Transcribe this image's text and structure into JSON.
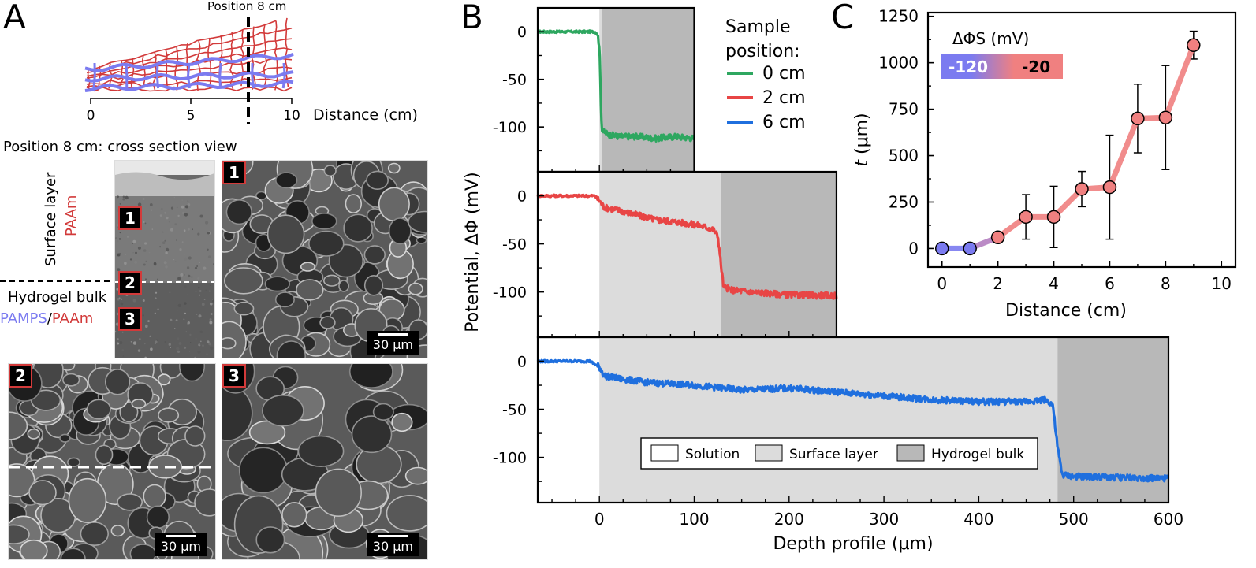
{
  "panel_labels": {
    "a": "A",
    "b": "B",
    "c": "C"
  },
  "panel_a": {
    "schematic": {
      "position_label": "Position 8 cm",
      "axis_label": "Distance (cm)",
      "ticks": [
        "0",
        "5",
        "10"
      ]
    },
    "cross_section_title": "Position 8 cm: cross section view",
    "surface_layer_label": "Surface layer",
    "surface_layer_material": "PAAm",
    "bulk_label": "Hydrogel bulk",
    "bulk_material_1": "PAMPS",
    "bulk_material_sep": "/",
    "bulk_material_2": "PAAm",
    "badges": [
      "1",
      "2",
      "3"
    ],
    "scale_bar": "30 μm",
    "colors": {
      "pamps": "#7b7bf0",
      "paam": "#d23a3a"
    }
  },
  "chart_data": [
    {
      "type": "line",
      "panel": "B",
      "xlabel": "Depth profile (μm)",
      "ylabel": "Potential, ΔΦ (mV)",
      "x_ticks": [
        0,
        100,
        200,
        300,
        400,
        500,
        600
      ],
      "y_ticks": [
        0,
        -50,
        -100
      ],
      "legend_title": "Sample position:",
      "region_legend": [
        "Solution",
        "Surface layer",
        "Hydrogel bulk"
      ],
      "region_colors": {
        "solution": "#ffffff",
        "surface": "#dcdcdc",
        "bulk": "#b8b8b8"
      },
      "series": [
        {
          "name": "0 cm",
          "color": "#2ea760",
          "xlim": [
            -65,
            100
          ],
          "ylim": [
            -147,
            25
          ],
          "surface_layer": [
            0,
            3
          ],
          "bulk_from": 3,
          "x": [
            -65,
            -20,
            -5,
            -2,
            0,
            1,
            2,
            3,
            10,
            20,
            40,
            60,
            80,
            100
          ],
          "y": [
            0,
            0,
            0,
            -2,
            -15,
            -50,
            -90,
            -104,
            -108,
            -110,
            -110,
            -112,
            -110,
            -112
          ]
        },
        {
          "name": "2 cm",
          "color": "#e84545",
          "xlim": [
            -65,
            250
          ],
          "ylim": [
            -147,
            25
          ],
          "surface_layer": [
            0,
            128
          ],
          "bulk_from": 128,
          "x": [
            -65,
            -5,
            0,
            5,
            20,
            40,
            60,
            80,
            100,
            110,
            120,
            125,
            128,
            131,
            140,
            160,
            200,
            250
          ],
          "y": [
            0,
            0,
            -5,
            -12,
            -15,
            -20,
            -25,
            -27,
            -30,
            -32,
            -35,
            -42,
            -70,
            -95,
            -98,
            -100,
            -103,
            -104
          ]
        },
        {
          "name": "6 cm",
          "color": "#1f6fde",
          "xlim": [
            -65,
            600
          ],
          "ylim": [
            -147,
            25
          ],
          "surface_layer": [
            0,
            483
          ],
          "bulk_from": 483,
          "x": [
            -65,
            -10,
            0,
            5,
            20,
            50,
            100,
            150,
            200,
            250,
            300,
            350,
            400,
            450,
            470,
            478,
            483,
            488,
            500,
            550,
            600
          ],
          "y": [
            0,
            0,
            -6,
            -15,
            -18,
            -22,
            -25,
            -30,
            -28,
            -32,
            -36,
            -40,
            -42,
            -42,
            -40,
            -45,
            -90,
            -118,
            -120,
            -121,
            -122
          ]
        }
      ]
    },
    {
      "type": "scatter",
      "panel": "C",
      "xlabel": "Distance (cm)",
      "ylabel_italic": "t",
      "ylabel_rest": " (μm)",
      "xlim": [
        -0.5,
        10.5
      ],
      "ylim": [
        -100,
        1270
      ],
      "x_ticks": [
        0,
        2,
        4,
        6,
        8,
        10
      ],
      "y_ticks": [
        0,
        250,
        500,
        750,
        1000,
        1250
      ],
      "colorbar_label": "ΔΦS (mV)",
      "colorbar_min": "-120",
      "colorbar_max": "-20",
      "colors": {
        "low": "#7b7bf0",
        "high": "#f08080"
      },
      "x": [
        0,
        1,
        2,
        3,
        4,
        5,
        6,
        7,
        8,
        9
      ],
      "y": [
        0,
        0,
        60,
        170,
        170,
        320,
        330,
        700,
        705,
        1095
      ],
      "err": [
        0,
        0,
        0,
        120,
        165,
        95,
        280,
        185,
        280,
        75
      ]
    }
  ]
}
